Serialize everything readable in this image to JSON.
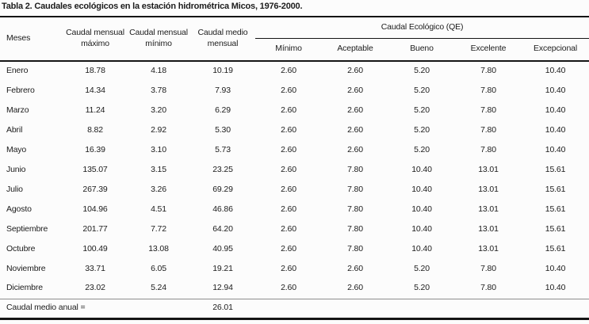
{
  "title": "Tabla 2. Caudales ecológicos en la estación hidrométrica Micos, 1976-2000.",
  "table": {
    "headers": {
      "meses": "Meses",
      "caudal_mensual_maximo": {
        "line1": "Caudal mensual",
        "line2": "máximo"
      },
      "caudal_mensual_minimo": {
        "line1": "Caudal mensual",
        "line2": "mínimo"
      },
      "caudal_medio_mensual": {
        "line1": "Caudal medio",
        "line2": "mensual"
      },
      "grupo_qe": "Caudal Ecológico (QE)",
      "qe_sub": [
        "Mínimo",
        "Aceptable",
        "Bueno",
        "Excelente",
        "Excepcional"
      ]
    },
    "rows": [
      {
        "mes": "Enero",
        "values": [
          "18.78",
          "4.18",
          "10.19",
          "2.60",
          "2.60",
          "5.20",
          "7.80",
          "10.40"
        ]
      },
      {
        "mes": "Febrero",
        "values": [
          "14.34",
          "3.78",
          "7.93",
          "2.60",
          "2.60",
          "5.20",
          "7.80",
          "10.40"
        ]
      },
      {
        "mes": "Marzo",
        "values": [
          "11.24",
          "3.20",
          "6.29",
          "2.60",
          "2.60",
          "5.20",
          "7.80",
          "10.40"
        ]
      },
      {
        "mes": "Abril",
        "values": [
          "8.82",
          "2.92",
          "5.30",
          "2.60",
          "2.60",
          "5.20",
          "7.80",
          "10.40"
        ]
      },
      {
        "mes": "Mayo",
        "values": [
          "16.39",
          "3.10",
          "5.73",
          "2.60",
          "2.60",
          "5.20",
          "7.80",
          "10.40"
        ]
      },
      {
        "mes": "Junio",
        "values": [
          "135.07",
          "3.15",
          "23.25",
          "2.60",
          "7.80",
          "10.40",
          "13.01",
          "15.61"
        ]
      },
      {
        "mes": "Julio",
        "values": [
          "267.39",
          "3.26",
          "69.29",
          "2.60",
          "7.80",
          "10.40",
          "13.01",
          "15.61"
        ]
      },
      {
        "mes": "Agosto",
        "values": [
          "104.96",
          "4.51",
          "46.86",
          "2.60",
          "7.80",
          "10.40",
          "13.01",
          "15.61"
        ]
      },
      {
        "mes": "Septiembre",
        "values": [
          "201.77",
          "7.72",
          "64.20",
          "2.60",
          "7.80",
          "10.40",
          "13.01",
          "15.61"
        ]
      },
      {
        "mes": "Octubre",
        "values": [
          "100.49",
          "13.08",
          "40.95",
          "2.60",
          "7.80",
          "10.40",
          "13.01",
          "15.61"
        ]
      },
      {
        "mes": "Noviembre",
        "values": [
          "33.71",
          "6.05",
          "19.21",
          "2.60",
          "2.60",
          "5.20",
          "7.80",
          "10.40"
        ]
      },
      {
        "mes": "Diciembre",
        "values": [
          "23.02",
          "5.24",
          "12.94",
          "2.60",
          "2.60",
          "5.20",
          "7.80",
          "10.40"
        ]
      }
    ],
    "footer": {
      "label": "Caudal medio anual =",
      "value": "26.01"
    }
  }
}
